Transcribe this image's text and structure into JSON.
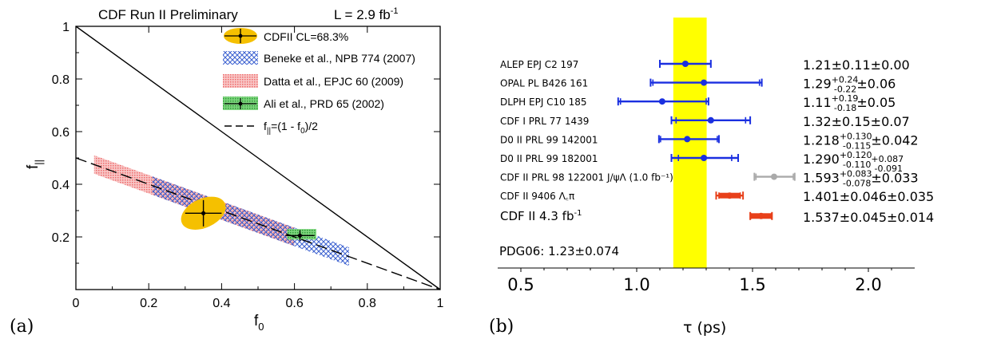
{
  "panel_a": {
    "tag": "(a)",
    "header_left": "CDF Run II Preliminary",
    "header_right_base": "L = 2.9 fb",
    "header_right_sup": "-1",
    "xlabel_base": "f",
    "xlabel_sub": "0",
    "ylabel_base": "f",
    "ylabel_sub": "||",
    "legend": [
      {
        "key": "cdf",
        "label": "CDFII CL=68.3%"
      },
      {
        "key": "beneke",
        "label": "Beneke et al., NPB 774 (2007)"
      },
      {
        "key": "datta",
        "label": "Datta et al., EPJC 60 (2009)"
      },
      {
        "key": "ali",
        "label": "Ali et al., PRD 65 (2002)"
      },
      {
        "key": "line",
        "label_base": "f",
        "label_sub": "||",
        "label_rest": "=(1 - f",
        "label_sub2": "0",
        "label_end": ")/2"
      }
    ]
  },
  "panel_b": {
    "tag": "(b)",
    "xlabel": "τ (ps)",
    "pdg_label": "PDG06: 1.23±0.074"
  },
  "chart_data": [
    {
      "type": "scatter",
      "panel": "a",
      "xlabel": "f0",
      "ylabel": "f||",
      "xlim": [
        0,
        1
      ],
      "ylim": [
        0,
        1
      ],
      "x_ticks": [
        "0",
        "0.2",
        "0.4",
        "0.6",
        "0.8",
        "1"
      ],
      "y_ticks": [
        "0.2",
        "0.4",
        "0.6",
        "0.8",
        "1"
      ],
      "lines": [
        {
          "name": "f0 + f|| = 1",
          "x": [
            0,
            1
          ],
          "y": [
            1,
            0
          ],
          "style": "solid"
        },
        {
          "name": "f||=(1 - f0)/2",
          "x": [
            0,
            1
          ],
          "y": [
            0.5,
            0
          ],
          "style": "dashed"
        }
      ],
      "bands": [
        {
          "name": "Datta et al., EPJC 60 (2009)",
          "x_range": [
            0.05,
            0.6
          ],
          "half_width_y": 0.035,
          "color": "#f08080"
        },
        {
          "name": "Beneke et al., NPB 774 (2007)",
          "x_range": [
            0.21,
            0.75
          ],
          "half_width_y": 0.035,
          "color": "#3a5fd0"
        },
        {
          "name": "Ali et al., PRD 65 (2002)",
          "x_range": [
            0.58,
            0.66
          ],
          "y_range": [
            0.19,
            0.23
          ],
          "color": "#3cb043"
        }
      ],
      "points": [
        {
          "name": "CDFII CL=68.3%",
          "x": 0.35,
          "y": 0.29,
          "xerr": 0.05,
          "yerr": 0.05,
          "ellipse": {
            "rx": 0.065,
            "ry": 0.055,
            "angle": -25
          },
          "color": "#f5c000"
        },
        {
          "name": "Ali et al., PRD 65 (2002)",
          "x": 0.615,
          "y": 0.205,
          "xerr": 0.04,
          "yerr": 0.02,
          "color": "#000000"
        }
      ]
    },
    {
      "type": "scatter",
      "panel": "b",
      "xlabel": "τ (ps)",
      "xlim": [
        0.4,
        2.2
      ],
      "x_ticks": [
        "0.5",
        "1.0",
        "1.5",
        "2.0"
      ],
      "band": {
        "name": "PDG06: 1.23±0.074",
        "center": 1.23,
        "width": 0.074,
        "color": "#ffff00"
      },
      "rows": [
        {
          "label": "ALEP EPJ C2 197",
          "x": 1.21,
          "stat": 0.11,
          "tot": 0.11,
          "color": "#1a2fe0",
          "value_parts": [
            [
              "1.21±0.11±0.00",
              ""
            ]
          ]
        },
        {
          "label": "OPAL PL B426 161",
          "x": 1.29,
          "stat_lo": 0.22,
          "stat_hi": 0.24,
          "tot_lo": 0.23,
          "tot_hi": 0.25,
          "color": "#1a2fe0",
          "value_parts": [
            [
              "1.29",
              ""
            ],
            [
              "+0.24",
              "sup"
            ],
            [
              "-0.22",
              "sub"
            ],
            [
              "±0.06",
              ""
            ]
          ]
        },
        {
          "label": "DLPH EPJ C10 185",
          "x": 1.11,
          "stat_lo": 0.18,
          "stat_hi": 0.19,
          "tot_lo": 0.19,
          "tot_hi": 0.2,
          "color": "#1a2fe0",
          "value_parts": [
            [
              "1.11",
              ""
            ],
            [
              "+0.19",
              "sup"
            ],
            [
              "-0.18",
              "sub"
            ],
            [
              "±0.05",
              ""
            ]
          ]
        },
        {
          "label": "CDF I PRL 77 1439",
          "x": 1.32,
          "stat": 0.15,
          "tot": 0.17,
          "color": "#1a2fe0",
          "value_parts": [
            [
              "1.32±0.15±0.07",
              ""
            ]
          ]
        },
        {
          "label": "D0 II PRL 99 142001",
          "x": 1.218,
          "stat_lo": 0.115,
          "stat_hi": 0.13,
          "tot_lo": 0.122,
          "tot_hi": 0.137,
          "color": "#1a2fe0",
          "value_parts": [
            [
              "1.218",
              ""
            ],
            [
              "+0.130",
              "sup"
            ],
            [
              "-0.115",
              "sub"
            ],
            [
              "±0.042",
              ""
            ]
          ]
        },
        {
          "label": "D0 II PRL 99 182001",
          "x": 1.29,
          "stat_lo": 0.11,
          "stat_hi": 0.12,
          "tot_lo": 0.14,
          "tot_hi": 0.148,
          "color": "#1a2fe0",
          "value_parts": [
            [
              "1.290",
              ""
            ],
            [
              "+0.120",
              "sup"
            ],
            [
              "-0.110",
              "sub"
            ],
            [
              "+0.087",
              "sup"
            ],
            [
              "-0.091",
              "sub"
            ]
          ]
        },
        {
          "label": "CDF II PRL 98 122001 J/ψΛ  (1.0 fb⁻¹)",
          "x": 1.593,
          "stat_lo": 0.078,
          "stat_hi": 0.083,
          "tot_lo": 0.085,
          "tot_hi": 0.089,
          "color": "#aaaaaa",
          "value_parts": [
            [
              "1.593",
              ""
            ],
            [
              "+0.083",
              "sup"
            ],
            [
              "-0.078",
              "sub"
            ],
            [
              "±0.033",
              ""
            ]
          ]
        },
        {
          "label": "CDF II 9406 Λ꜀π",
          "x": 1.401,
          "stat": 0.046,
          "tot": 0.058,
          "color": "#e8401a",
          "value_parts": [
            [
              "1.401±0.046±0.035",
              ""
            ]
          ]
        },
        {
          "label": "CDF II 4.3 fb",
          "label_sup": "-1",
          "x": 1.537,
          "stat": 0.045,
          "tot": 0.047,
          "color": "#e8401a",
          "big": true,
          "value_parts": [
            [
              "1.537±0.045±0.014",
              ""
            ]
          ]
        }
      ]
    }
  ]
}
